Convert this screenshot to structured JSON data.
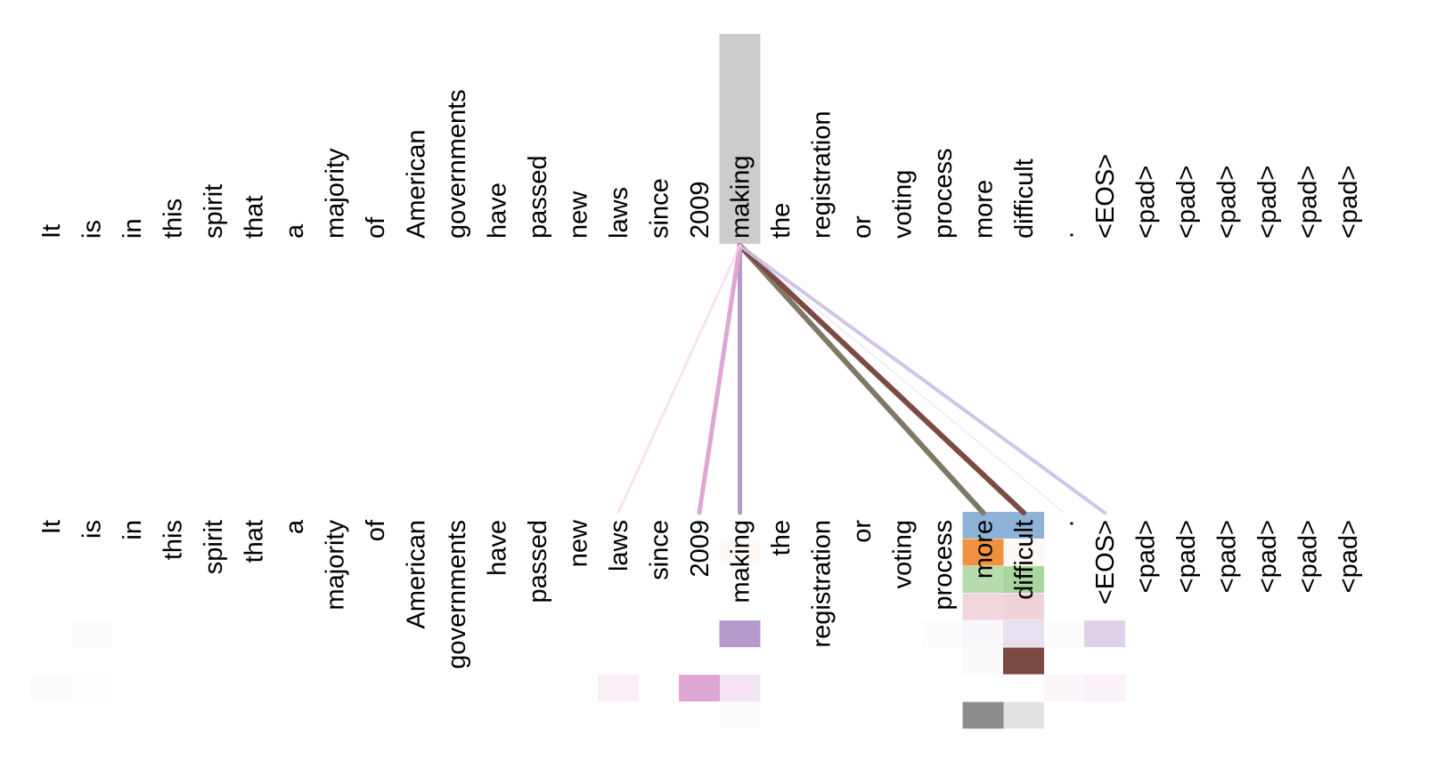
{
  "tokens": [
    "It",
    "is",
    "in",
    "this",
    "spirit",
    "that",
    "a",
    "majority",
    "of",
    "American",
    "governments",
    "have",
    "passed",
    "new",
    "laws",
    "since",
    "2009",
    "making",
    "the",
    "registration",
    "or",
    "voting",
    "process",
    "more",
    "difficult",
    ".",
    "<EOS>",
    "<pad>",
    "<pad>",
    "<pad>",
    "<pad>",
    "<pad>",
    "<pad>"
  ],
  "selected_token": 17,
  "attention_edges": [
    {
      "target": 23,
      "color": "#7f7865",
      "opacity": 1.0,
      "width": 6
    },
    {
      "target": 24,
      "color": "#7b4a42",
      "opacity": 1.0,
      "width": 6
    },
    {
      "target": 17,
      "color": "#b79acd",
      "opacity": 1.0,
      "width": 5
    },
    {
      "target": 16,
      "color": "#dfa6d3",
      "opacity": 1.0,
      "width": 5
    },
    {
      "target": 26,
      "color": "#c6b5e0",
      "opacity": 0.8,
      "width": 4
    },
    {
      "target": 14,
      "color": "#f3cfe9",
      "opacity": 0.6,
      "width": 3
    },
    {
      "target": 25,
      "color": "#e8dde8",
      "opacity": 0.5,
      "width": 2
    }
  ],
  "head_colors": [
    "#8eb1d8",
    "#f0913f",
    "#a9d59e",
    "#efd3d8",
    "#b79acd",
    "#7b4a42",
    "#dfa6d3",
    "#8c8c8c"
  ],
  "attention_cells": [
    {
      "token": 23,
      "head": 0,
      "value": 1.0
    },
    {
      "token": 24,
      "head": 0,
      "value": 1.0
    },
    {
      "token": 23,
      "head": 1,
      "value": 1.0
    },
    {
      "token": 24,
      "head": 1,
      "value": 0.05
    },
    {
      "token": 17,
      "head": 1,
      "value": 0.05
    },
    {
      "token": 23,
      "head": 2,
      "value": 0.85
    },
    {
      "token": 24,
      "head": 2,
      "value": 1.0
    },
    {
      "token": 23,
      "head": 3,
      "value": 0.9
    },
    {
      "token": 24,
      "head": 3,
      "value": 1.0
    },
    {
      "token": 17,
      "head": 4,
      "value": 1.0
    },
    {
      "token": 26,
      "head": 4,
      "value": 0.45
    },
    {
      "token": 24,
      "head": 4,
      "value": 0.3
    },
    {
      "token": 23,
      "head": 4,
      "value": 0.08
    },
    {
      "token": 25,
      "head": 4,
      "value": 0.03
    },
    {
      "token": 1,
      "head": 4,
      "value": 0.03
    },
    {
      "token": 22,
      "head": 4,
      "value": 0.03
    },
    {
      "token": 24,
      "head": 5,
      "value": 1.0
    },
    {
      "token": 23,
      "head": 5,
      "value": 0.03
    },
    {
      "token": 16,
      "head": 6,
      "value": 1.0
    },
    {
      "token": 17,
      "head": 6,
      "value": 0.3
    },
    {
      "token": 14,
      "head": 6,
      "value": 0.2
    },
    {
      "token": 26,
      "head": 6,
      "value": 0.15
    },
    {
      "token": 25,
      "head": 6,
      "value": 0.1
    },
    {
      "token": 0,
      "head": 6,
      "value": 0.05
    },
    {
      "token": 1,
      "head": 6,
      "value": 0.04
    },
    {
      "token": 23,
      "head": 7,
      "value": 1.0
    },
    {
      "token": 24,
      "head": 7,
      "value": 0.25
    },
    {
      "token": 17,
      "head": 7,
      "value": 0.03
    }
  ]
}
